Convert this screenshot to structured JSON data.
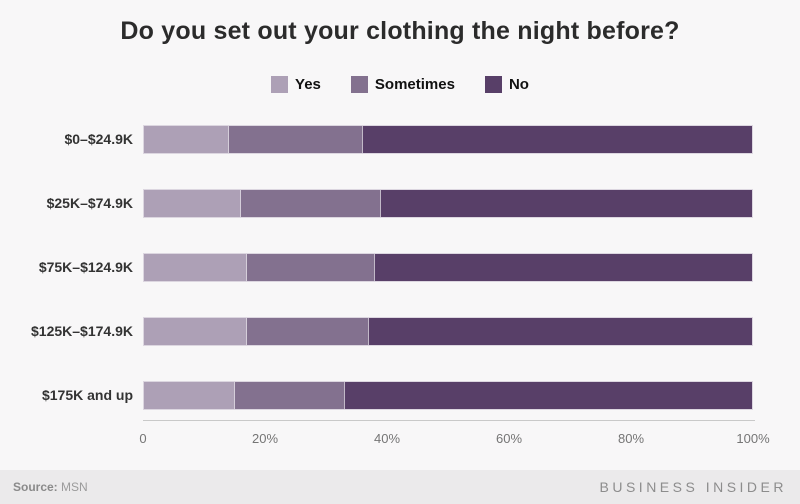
{
  "title": "Do you set out your clothing the night before?",
  "legend": {
    "items": [
      {
        "label": "Yes",
        "color": "#ada0b6"
      },
      {
        "label": "Sometimes",
        "color": "#83718f"
      },
      {
        "label": "No",
        "color": "#583f68"
      }
    ]
  },
  "chart_data": {
    "type": "bar",
    "orientation": "horizontal",
    "stacked": true,
    "title": "Do you set out your clothing the night before?",
    "categories": [
      "$0–$24.9K",
      "$25K–$74.9K",
      "$75K–$124.9K",
      "$125K–$174.9K",
      "$175K and up"
    ],
    "series": [
      {
        "name": "Yes",
        "color": "#ada0b6",
        "values": [
          14,
          16,
          17,
          17,
          15
        ]
      },
      {
        "name": "Sometimes",
        "color": "#83718f",
        "values": [
          22,
          23,
          21,
          20,
          18
        ]
      },
      {
        "name": "No",
        "color": "#583f68",
        "values": [
          64,
          61,
          62,
          63,
          67
        ]
      }
    ],
    "xlabel": "",
    "ylabel": "",
    "xlim": [
      0,
      100
    ],
    "xticks": {
      "positions": [
        0,
        20,
        40,
        60,
        80,
        100
      ],
      "labels": [
        "0",
        "20%",
        "40%",
        "60%",
        "80%",
        "100%"
      ]
    },
    "grid": false,
    "legend_position": "top"
  },
  "footer": {
    "source_label": "Source:",
    "source_value": "MSN",
    "brand": "BUSINESS INSIDER"
  }
}
